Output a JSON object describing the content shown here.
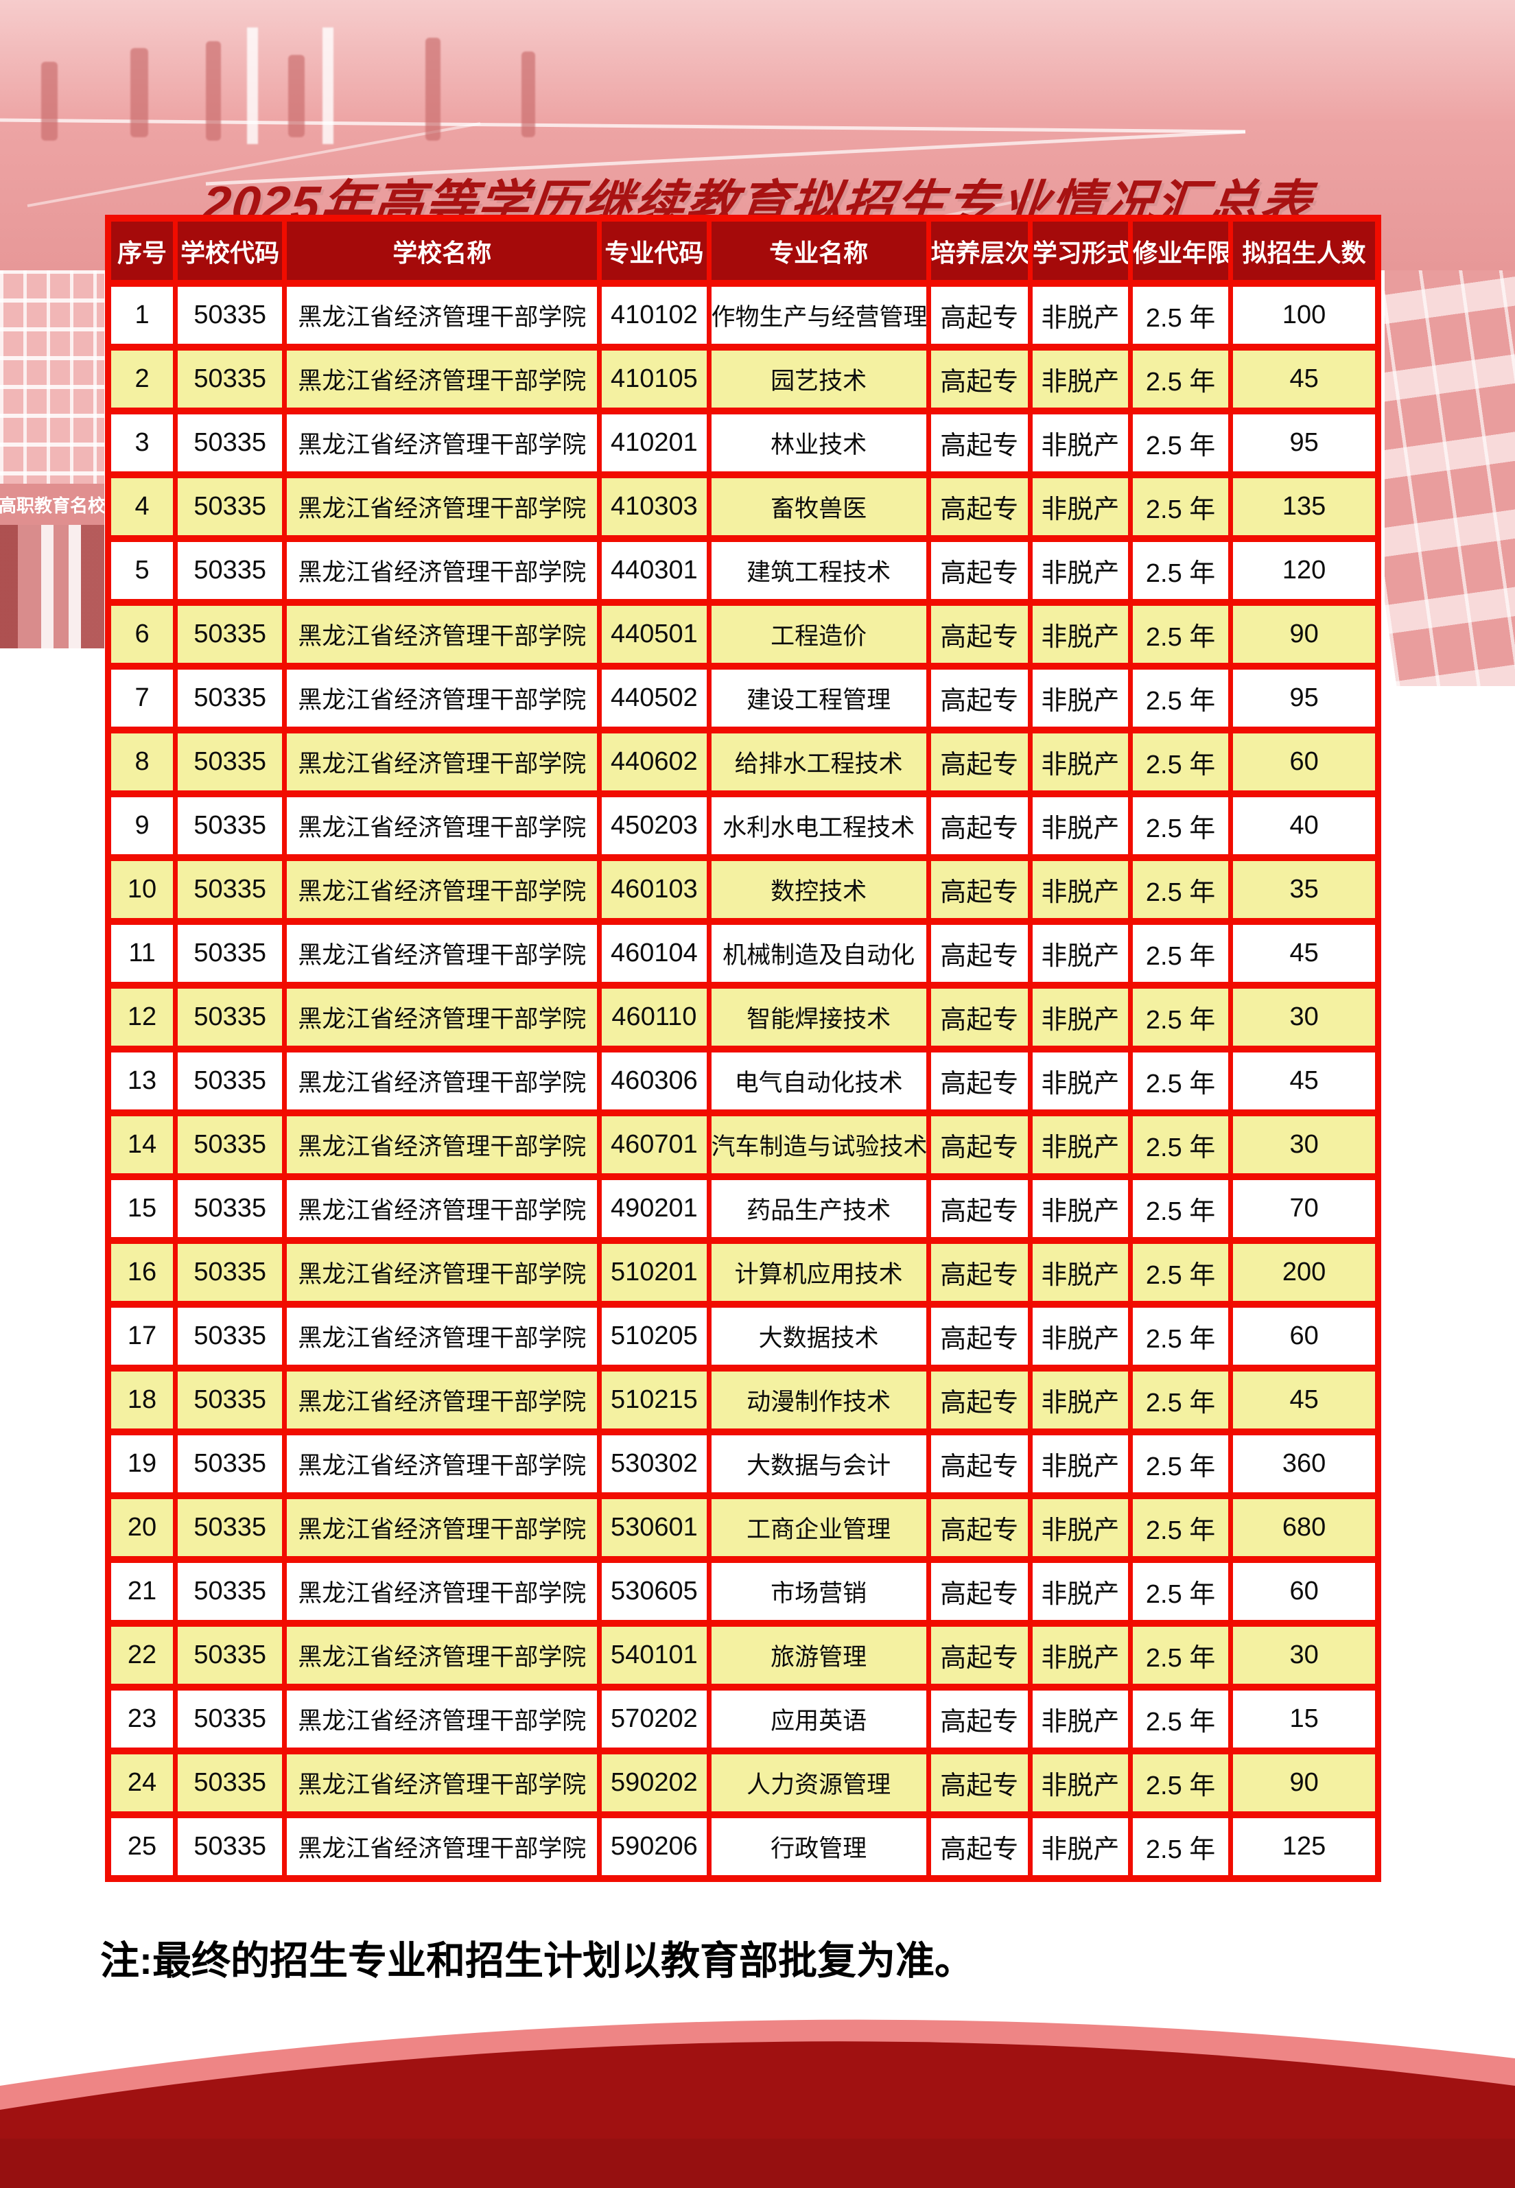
{
  "page": {
    "title": "2025年高等学历继续教育拟招生专业情况汇总表",
    "note": "注:最终的招生专业和招生计划以教育部批复为准。",
    "photo_banner_text": "高职教育名校"
  },
  "colors": {
    "border_red": "#f10c00",
    "header_bg": "#a50a0a",
    "title_red": "#a81212",
    "row_yellow": "#f4f1a1",
    "bottom_band_red": "#a01111",
    "salmon_arc": "#ee8585",
    "photo_pink": "#efa9a9"
  },
  "table": {
    "columns": [
      "序号",
      "学校代码",
      "学校名称",
      "专业代码",
      "专业名称",
      "培养层次",
      "学习形式",
      "修业年限",
      "拟招生人数"
    ],
    "rows": [
      [
        "1",
        "50335",
        "黑龙江省经济管理干部学院",
        "410102",
        "作物生产与经营管理",
        "高起专",
        "非脱产",
        "2.5 年",
        "100"
      ],
      [
        "2",
        "50335",
        "黑龙江省经济管理干部学院",
        "410105",
        "园艺技术",
        "高起专",
        "非脱产",
        "2.5 年",
        "45"
      ],
      [
        "3",
        "50335",
        "黑龙江省经济管理干部学院",
        "410201",
        "林业技术",
        "高起专",
        "非脱产",
        "2.5 年",
        "95"
      ],
      [
        "4",
        "50335",
        "黑龙江省经济管理干部学院",
        "410303",
        "畜牧兽医",
        "高起专",
        "非脱产",
        "2.5 年",
        "135"
      ],
      [
        "5",
        "50335",
        "黑龙江省经济管理干部学院",
        "440301",
        "建筑工程技术",
        "高起专",
        "非脱产",
        "2.5 年",
        "120"
      ],
      [
        "6",
        "50335",
        "黑龙江省经济管理干部学院",
        "440501",
        "工程造价",
        "高起专",
        "非脱产",
        "2.5 年",
        "90"
      ],
      [
        "7",
        "50335",
        "黑龙江省经济管理干部学院",
        "440502",
        "建设工程管理",
        "高起专",
        "非脱产",
        "2.5 年",
        "95"
      ],
      [
        "8",
        "50335",
        "黑龙江省经济管理干部学院",
        "440602",
        "给排水工程技术",
        "高起专",
        "非脱产",
        "2.5 年",
        "60"
      ],
      [
        "9",
        "50335",
        "黑龙江省经济管理干部学院",
        "450203",
        "水利水电工程技术",
        "高起专",
        "非脱产",
        "2.5 年",
        "40"
      ],
      [
        "10",
        "50335",
        "黑龙江省经济管理干部学院",
        "460103",
        "数控技术",
        "高起专",
        "非脱产",
        "2.5 年",
        "35"
      ],
      [
        "11",
        "50335",
        "黑龙江省经济管理干部学院",
        "460104",
        "机械制造及自动化",
        "高起专",
        "非脱产",
        "2.5 年",
        "45"
      ],
      [
        "12",
        "50335",
        "黑龙江省经济管理干部学院",
        "460110",
        "智能焊接技术",
        "高起专",
        "非脱产",
        "2.5 年",
        "30"
      ],
      [
        "13",
        "50335",
        "黑龙江省经济管理干部学院",
        "460306",
        "电气自动化技术",
        "高起专",
        "非脱产",
        "2.5 年",
        "45"
      ],
      [
        "14",
        "50335",
        "黑龙江省经济管理干部学院",
        "460701",
        "汽车制造与试验技术",
        "高起专",
        "非脱产",
        "2.5 年",
        "30"
      ],
      [
        "15",
        "50335",
        "黑龙江省经济管理干部学院",
        "490201",
        "药品生产技术",
        "高起专",
        "非脱产",
        "2.5 年",
        "70"
      ],
      [
        "16",
        "50335",
        "黑龙江省经济管理干部学院",
        "510201",
        "计算机应用技术",
        "高起专",
        "非脱产",
        "2.5 年",
        "200"
      ],
      [
        "17",
        "50335",
        "黑龙江省经济管理干部学院",
        "510205",
        "大数据技术",
        "高起专",
        "非脱产",
        "2.5 年",
        "60"
      ],
      [
        "18",
        "50335",
        "黑龙江省经济管理干部学院",
        "510215",
        "动漫制作技术",
        "高起专",
        "非脱产",
        "2.5 年",
        "45"
      ],
      [
        "19",
        "50335",
        "黑龙江省经济管理干部学院",
        "530302",
        "大数据与会计",
        "高起专",
        "非脱产",
        "2.5 年",
        "360"
      ],
      [
        "20",
        "50335",
        "黑龙江省经济管理干部学院",
        "530601",
        "工商企业管理",
        "高起专",
        "非脱产",
        "2.5 年",
        "680"
      ],
      [
        "21",
        "50335",
        "黑龙江省经济管理干部学院",
        "530605",
        "市场营销",
        "高起专",
        "非脱产",
        "2.5 年",
        "60"
      ],
      [
        "22",
        "50335",
        "黑龙江省经济管理干部学院",
        "540101",
        "旅游管理",
        "高起专",
        "非脱产",
        "2.5 年",
        "30"
      ],
      [
        "23",
        "50335",
        "黑龙江省经济管理干部学院",
        "570202",
        "应用英语",
        "高起专",
        "非脱产",
        "2.5 年",
        "15"
      ],
      [
        "24",
        "50335",
        "黑龙江省经济管理干部学院",
        "590202",
        "人力资源管理",
        "高起专",
        "非脱产",
        "2.5 年",
        "90"
      ],
      [
        "25",
        "50335",
        "黑龙江省经济管理干部学院",
        "590206",
        "行政管理",
        "高起专",
        "非脱产",
        "2.5 年",
        "125"
      ]
    ]
  }
}
